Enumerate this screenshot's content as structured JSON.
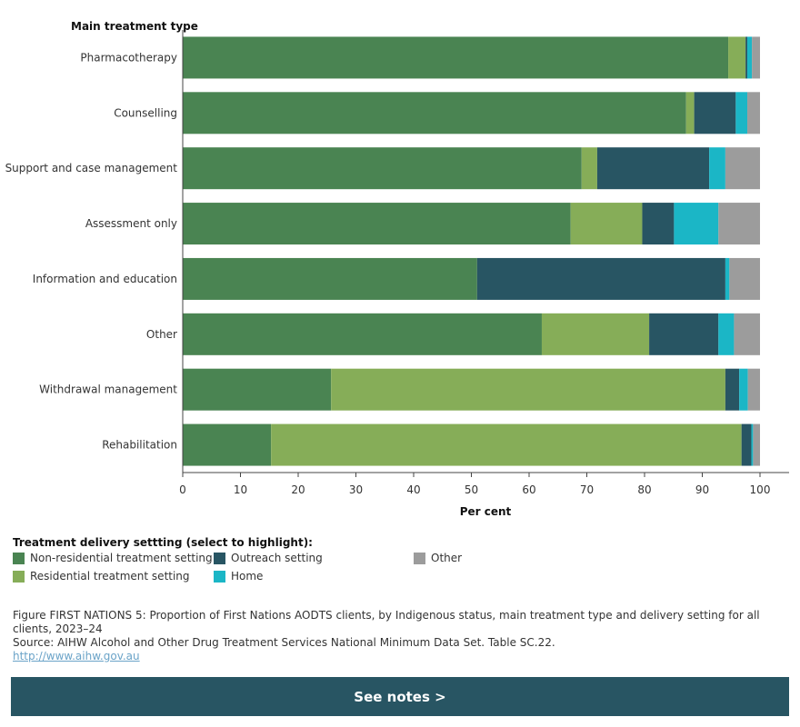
{
  "chart_data": {
    "type": "bar",
    "orientation": "horizontal",
    "stacked": true,
    "ylabel": "Main treatment type",
    "xlabel": "Per cent",
    "xlim": [
      0,
      100
    ],
    "xticks": [
      0,
      10,
      20,
      30,
      40,
      50,
      60,
      70,
      80,
      90,
      100
    ],
    "categories": [
      "Pharmacotherapy",
      "Counselling",
      "Support and case management",
      "Assessment only",
      "Information and education",
      "Other",
      "Withdrawal management",
      "Rehabilitation"
    ],
    "series": [
      {
        "name": "Non-residential treatment setting",
        "color": "#4a8452",
        "values": [
          94.5,
          87.2,
          69.1,
          67.2,
          51.0,
          62.2,
          25.7,
          15.3
        ]
      },
      {
        "name": "Residential treatment setting",
        "color": "#86ad58",
        "values": [
          3.0,
          1.4,
          2.7,
          12.4,
          0.0,
          18.6,
          68.3,
          81.5
        ]
      },
      {
        "name": "Outreach setting",
        "color": "#285563",
        "values": [
          0.3,
          7.2,
          19.4,
          5.5,
          43.0,
          12.0,
          2.4,
          1.7
        ]
      },
      {
        "name": "Home",
        "color": "#1bb6c6",
        "values": [
          0.8,
          2.0,
          2.8,
          7.7,
          0.7,
          2.7,
          1.5,
          0.3
        ]
      },
      {
        "name": "Other",
        "color": "#9c9c9c",
        "values": [
          1.4,
          2.2,
          6.0,
          7.2,
          5.3,
          4.5,
          2.1,
          1.2
        ]
      }
    ],
    "legend_position": "bottom-left",
    "grid": false
  },
  "legend": {
    "title": "Treatment delivery settting (select to highlight):"
  },
  "caption": {
    "figure": "Figure FIRST NATIONS 5: Proportion of First Nations AODTS clients, by Indigenous status, main treatment type and delivery setting for all clients, 2023–24",
    "source": "Source: AIHW Alcohol and Other Drug Treatment Services National Minimum Data Set. Table SC.22.",
    "link": "http://www.aihw.gov.au"
  },
  "notes_button": {
    "label": "See notes >"
  }
}
